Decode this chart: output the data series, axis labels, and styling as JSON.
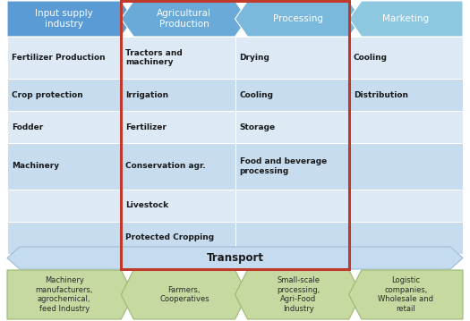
{
  "top_arrows": [
    {
      "label": "Input supply\nindustry"
    },
    {
      "label": "Agricultural\nProduction"
    },
    {
      "label": "Processing"
    },
    {
      "label": "Marketing"
    }
  ],
  "bottom_arrows": [
    {
      "label": "Machinery\nmanufacturers,\nagrochemical,\nfeed Industry"
    },
    {
      "label": "Farmers,\nCooperatives"
    },
    {
      "label": "Small-scale\nprocessing,\nAgri-Food\nIndustry"
    },
    {
      "label": "Logistic\ncompanies,\nWholesale and\nretail"
    }
  ],
  "transport_label": "Transport",
  "table_cells": [
    {
      "col": 0,
      "row": 0,
      "text": "Fertilizer Production"
    },
    {
      "col": 0,
      "row": 1,
      "text": "Crop protection"
    },
    {
      "col": 0,
      "row": 2,
      "text": "Fodder"
    },
    {
      "col": 0,
      "row": 3,
      "text": "Machinery"
    },
    {
      "col": 0,
      "row": 4,
      "text": ""
    },
    {
      "col": 0,
      "row": 5,
      "text": ""
    },
    {
      "col": 1,
      "row": 0,
      "text": "Tractors and\nmachinery"
    },
    {
      "col": 1,
      "row": 1,
      "text": "Irrigation"
    },
    {
      "col": 1,
      "row": 2,
      "text": "Fertilizer"
    },
    {
      "col": 1,
      "row": 3,
      "text": "Conservation agr."
    },
    {
      "col": 1,
      "row": 4,
      "text": "Livestock"
    },
    {
      "col": 1,
      "row": 5,
      "text": "Protected Cropping"
    },
    {
      "col": 2,
      "row": 0,
      "text": "Drying"
    },
    {
      "col": 2,
      "row": 1,
      "text": "Cooling"
    },
    {
      "col": 2,
      "row": 2,
      "text": "Storage"
    },
    {
      "col": 2,
      "row": 3,
      "text": "Food and beverage\nprocessing"
    },
    {
      "col": 2,
      "row": 4,
      "text": ""
    },
    {
      "col": 2,
      "row": 5,
      "text": ""
    },
    {
      "col": 3,
      "row": 0,
      "text": "Cooling"
    },
    {
      "col": 3,
      "row": 1,
      "text": "Distribution"
    },
    {
      "col": 3,
      "row": 2,
      "text": ""
    },
    {
      "col": 3,
      "row": 3,
      "text": ""
    },
    {
      "col": 3,
      "row": 4,
      "text": ""
    },
    {
      "col": 3,
      "row": 5,
      "text": ""
    }
  ],
  "blue_dark": "#4A86C8",
  "blue_light": "#A8C8E8",
  "blue_mid": "#6BA3D6",
  "cell_bg_even": "#DDEAF6",
  "cell_bg_odd": "#C8DCF0",
  "transport_bg": "#C5DCF0",
  "green_arrow": "#C5D9A0",
  "green_border": "#8DB050",
  "red_box_color": "#C0392B",
  "text_dark": "#1a1a1a",
  "white": "#ffffff"
}
